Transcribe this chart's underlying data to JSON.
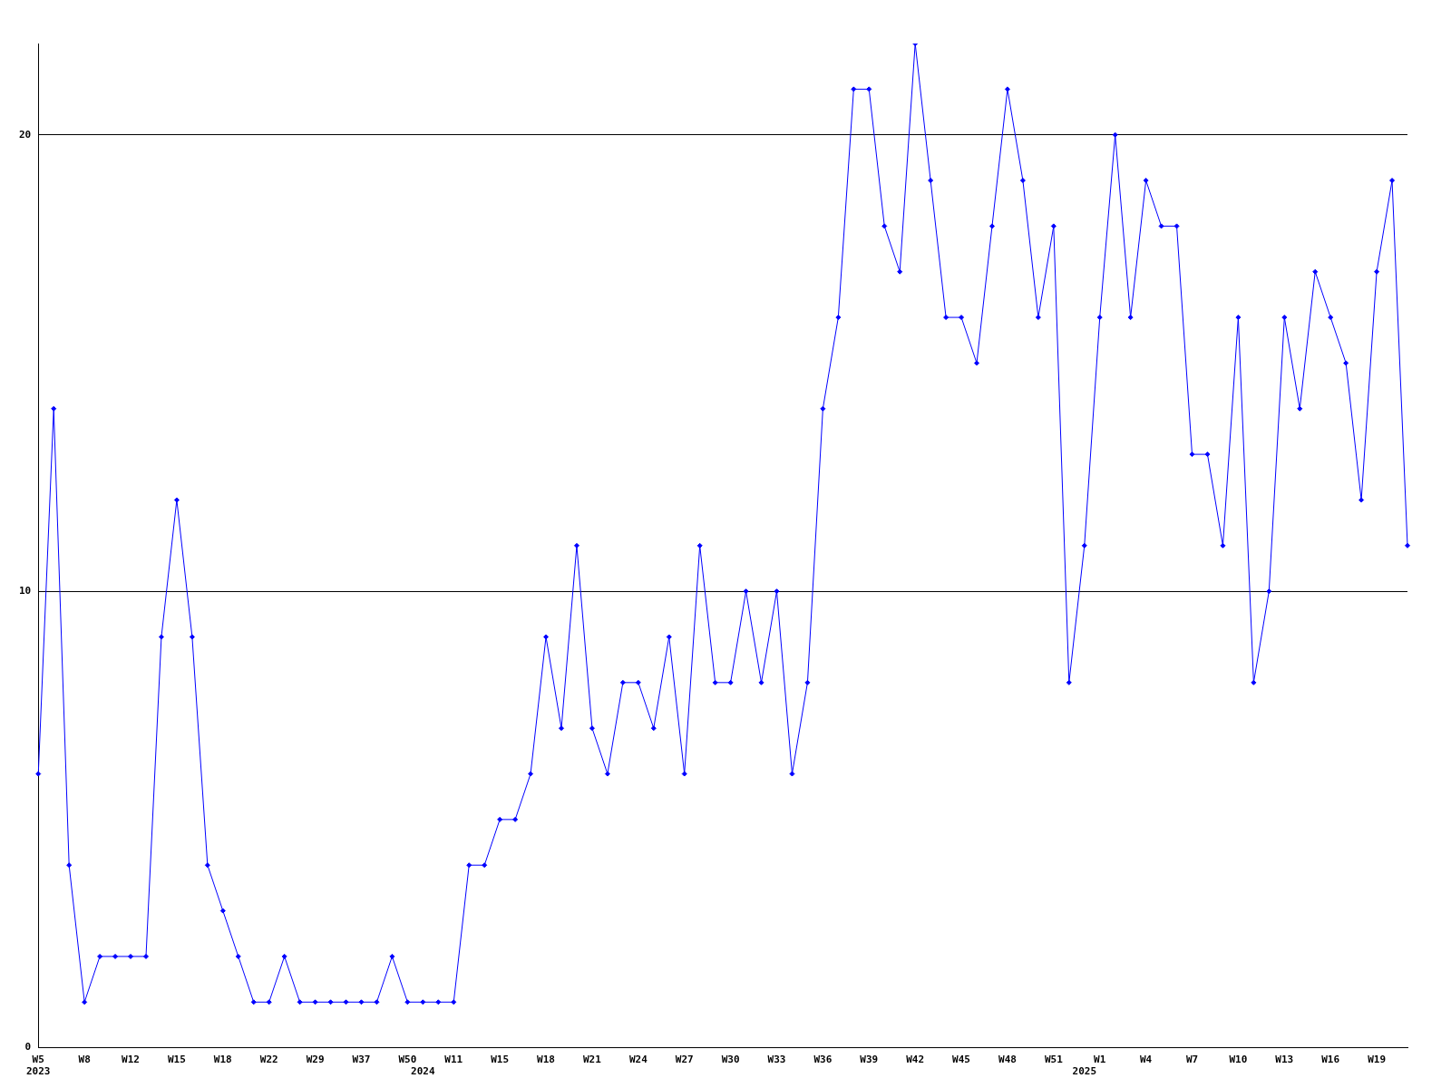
{
  "chart_data": {
    "type": "line",
    "categories": [
      "W5\n2023",
      null,
      null,
      "W8",
      null,
      null,
      "W12",
      null,
      null,
      "W15",
      null,
      null,
      "W18",
      null,
      null,
      "W22",
      null,
      null,
      "W29",
      null,
      null,
      "W37",
      null,
      null,
      "W50",
      "\n2024",
      null,
      "W11",
      null,
      null,
      "W15",
      null,
      null,
      "W18",
      null,
      null,
      "W21",
      null,
      null,
      "W24",
      null,
      null,
      "W27",
      null,
      null,
      "W30",
      null,
      null,
      "W33",
      null,
      null,
      "W36",
      null,
      null,
      "W39",
      null,
      null,
      "W42",
      null,
      null,
      "W45",
      null,
      null,
      "W48",
      null,
      null,
      "W51",
      null,
      "\n2025",
      "W1",
      null,
      null,
      "W4",
      null,
      null,
      "W7",
      null,
      null,
      "W10",
      null,
      null,
      "W13",
      null,
      null,
      "W16",
      null,
      null,
      "W19",
      null,
      null
    ],
    "series": [
      {
        "color": "#0000ff",
        "values": [
          6,
          14,
          4,
          1,
          2,
          2,
          2,
          2,
          9,
          12,
          9,
          4,
          3,
          2,
          1,
          1,
          2,
          1,
          1,
          1,
          1,
          1,
          1,
          2,
          1,
          1,
          1,
          1,
          4,
          4,
          5,
          5,
          6,
          9,
          7,
          11,
          7,
          6,
          8,
          8,
          7,
          9,
          6,
          11,
          8,
          8,
          10,
          8,
          10,
          6,
          8,
          14,
          16,
          21,
          21,
          18,
          17,
          22,
          19,
          16,
          16,
          15,
          18,
          21,
          19,
          16,
          18,
          8,
          11,
          16,
          20,
          16,
          19,
          18,
          18,
          13,
          13,
          11,
          16,
          8,
          10,
          16,
          14,
          17,
          16,
          15,
          12,
          17,
          19,
          11
        ]
      }
    ],
    "ylim": [
      0,
      22
    ],
    "yticks": [
      0,
      10,
      20
    ],
    "grid": "y",
    "legend": false,
    "marker": "diamond",
    "line_style": "solid"
  }
}
